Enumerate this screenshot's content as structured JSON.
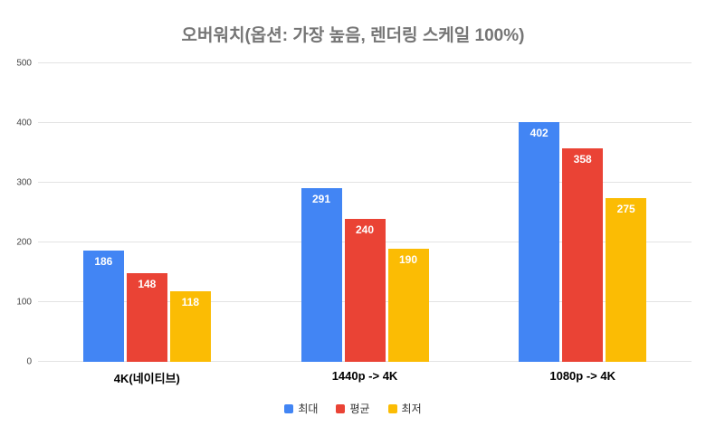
{
  "chart_data": {
    "type": "bar",
    "title": "오버워치(옵션: 가장 높음, 렌더링 스케일 100%)",
    "categories": [
      "4K(네이티브)",
      "1440p -> 4K",
      "1080p -> 4K"
    ],
    "series": [
      {
        "name": "최대",
        "color": "#4285F4",
        "values": [
          186,
          291,
          402
        ]
      },
      {
        "name": "평균",
        "color": "#EA4335",
        "values": [
          148,
          240,
          358
        ]
      },
      {
        "name": "최저",
        "color": "#FBBC04",
        "values": [
          118,
          190,
          275
        ]
      }
    ],
    "xlabel": "",
    "ylabel": "",
    "ylim": [
      0,
      500
    ],
    "yticks": [
      0,
      100,
      200,
      300,
      400,
      500
    ],
    "grid": true,
    "legend_position": "bottom"
  }
}
